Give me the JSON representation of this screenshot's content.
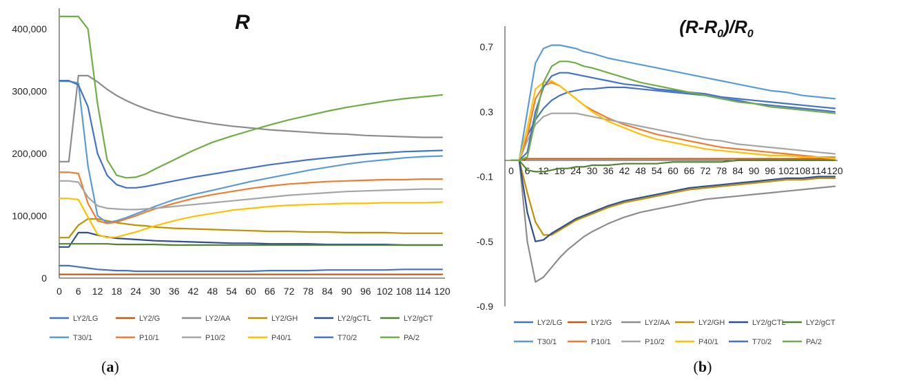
{
  "chart_data": [
    {
      "type": "line",
      "panel_label": "(a)",
      "title": "R",
      "xlabel": "",
      "ylabel": "",
      "x_ticks": [
        "0",
        "6",
        "12",
        "18",
        "24",
        "30",
        "36",
        "42",
        "48",
        "54",
        "60",
        "66",
        "72",
        "78",
        "84",
        "90",
        "96",
        "102",
        "108",
        "114",
        "120"
      ],
      "y_ticks": [
        "0",
        "100,000",
        "200,000",
        "300,000",
        "400,000"
      ],
      "xlim": [
        0,
        120
      ],
      "ylim": [
        0,
        400000
      ],
      "grid": false,
      "legend_position": "bottom",
      "x": [
        0,
        3,
        6,
        9,
        12,
        15,
        18,
        21,
        24,
        27,
        30,
        36,
        42,
        48,
        54,
        60,
        66,
        72,
        78,
        84,
        90,
        96,
        102,
        108,
        114,
        120
      ],
      "series": [
        {
          "name": "LY2/LG",
          "color": "#4472c4",
          "values": [
            20000,
            20000,
            18000,
            16000,
            14000,
            13000,
            12000,
            12000,
            11000,
            11000,
            11000,
            11000,
            11000,
            11000,
            11000,
            11000,
            12000,
            12000,
            12000,
            13000,
            13000,
            13000,
            13000,
            14000,
            14000,
            14000
          ]
        },
        {
          "name": "LY2/G",
          "color": "#c55a11",
          "values": [
            6000,
            6000,
            6000,
            6000,
            6000,
            6000,
            6000,
            6000,
            6000,
            6000,
            6000,
            6000,
            6000,
            6000,
            6000,
            6000,
            6000,
            6000,
            6000,
            6000,
            6000,
            6000,
            6000,
            6000,
            6000,
            6000
          ]
        },
        {
          "name": "LY2/AA",
          "color": "#8c8c8c",
          "values": [
            187000,
            187000,
            325000,
            325000,
            315000,
            303000,
            293000,
            285000,
            278000,
            272000,
            267000,
            259000,
            253000,
            248000,
            244000,
            241000,
            238000,
            236000,
            234000,
            232000,
            231000,
            229000,
            228000,
            227000,
            226000,
            226000
          ]
        },
        {
          "name": "LY2/GH",
          "color": "#bf9000",
          "values": [
            65000,
            65000,
            85000,
            95000,
            95000,
            92000,
            89000,
            87000,
            85000,
            84000,
            82000,
            80000,
            79000,
            78000,
            77000,
            76000,
            75000,
            75000,
            74000,
            74000,
            73000,
            73000,
            73000,
            72000,
            72000,
            72000
          ]
        },
        {
          "name": "LY2/gCTL",
          "color": "#2f4f8f",
          "values": [
            50000,
            50000,
            73000,
            73000,
            69000,
            66000,
            64000,
            63000,
            62000,
            61000,
            60000,
            59000,
            58000,
            57000,
            56000,
            56000,
            55000,
            55000,
            55000,
            54000,
            54000,
            54000,
            54000,
            53000,
            53000,
            53000
          ]
        },
        {
          "name": "LY2/gCT",
          "color": "#548235",
          "values": [
            55000,
            55000,
            55000,
            55000,
            55000,
            55000,
            54000,
            54000,
            54000,
            54000,
            54000,
            53000,
            53000,
            53000,
            53000,
            53000,
            53000,
            53000,
            53000,
            53000,
            53000,
            53000,
            53000,
            53000,
            53000,
            53000
          ]
        },
        {
          "name": "T30/1",
          "color": "#5b9bd5",
          "values": [
            316000,
            316000,
            313000,
            180000,
            100000,
            89000,
            92000,
            97000,
            103000,
            109000,
            115000,
            126000,
            134000,
            141000,
            148000,
            155000,
            161000,
            167000,
            173000,
            178000,
            183000,
            187000,
            190000,
            193000,
            195000,
            196000
          ]
        },
        {
          "name": "P10/1",
          "color": "#ed7d31",
          "values": [
            170000,
            170000,
            168000,
            120000,
            92000,
            88000,
            90000,
            95000,
            100000,
            106000,
            111000,
            120000,
            128000,
            134000,
            139000,
            144000,
            148000,
            151000,
            153000,
            155000,
            156000,
            157000,
            158000,
            158000,
            159000,
            159000
          ]
        },
        {
          "name": "P10/2",
          "color": "#a5a5a5",
          "values": [
            156000,
            156000,
            154000,
            130000,
            116000,
            112000,
            111000,
            110000,
            110000,
            111000,
            112000,
            115000,
            118000,
            121000,
            124000,
            127000,
            130000,
            133000,
            135000,
            137000,
            139000,
            140000,
            141000,
            142000,
            143000,
            143000
          ]
        },
        {
          "name": "P40/1",
          "color": "#ffc000",
          "values": [
            128000,
            128000,
            126000,
            98000,
            70000,
            65000,
            66000,
            70000,
            74000,
            79000,
            84000,
            92000,
            99000,
            104000,
            109000,
            112000,
            115000,
            117000,
            118000,
            119000,
            120000,
            120000,
            121000,
            121000,
            121000,
            122000
          ]
        },
        {
          "name": "T70/2",
          "color": "#4472c4",
          "values": [
            317000,
            317000,
            310000,
            275000,
            200000,
            165000,
            150000,
            145000,
            145000,
            147000,
            150000,
            156000,
            162000,
            167000,
            172000,
            177000,
            182000,
            186000,
            190000,
            193000,
            196000,
            199000,
            201000,
            203000,
            204000,
            205000
          ]
        },
        {
          "name": "PA/2",
          "color": "#70ad47",
          "values": [
            420000,
            420000,
            420000,
            400000,
            280000,
            190000,
            165000,
            161000,
            162000,
            167000,
            175000,
            190000,
            205000,
            218000,
            228000,
            237000,
            246000,
            254000,
            261000,
            268000,
            274000,
            279000,
            284000,
            288000,
            291000,
            294000
          ]
        }
      ]
    },
    {
      "type": "line",
      "panel_label": "(b)",
      "title": "(R-R0)/R0",
      "title_parts": {
        "a": "(R-R",
        "b": "0",
        "c": ")/R",
        "d": "0"
      },
      "xlabel": "",
      "ylabel": "",
      "x_ticks": [
        "0",
        "6",
        "12",
        "18",
        "24",
        "30",
        "36",
        "42",
        "48",
        "54",
        "60",
        "66",
        "72",
        "78",
        "84",
        "90",
        "96",
        "102",
        "108",
        "114",
        "120"
      ],
      "y_ticks": [
        "0.7",
        "0.3",
        "-0.1",
        "-0.5",
        "-0.9"
      ],
      "xlim": [
        0,
        120
      ],
      "ylim": [
        -0.9,
        0.7
      ],
      "grid": false,
      "legend_position": "bottom",
      "x": [
        0,
        3,
        6,
        9,
        12,
        15,
        18,
        21,
        24,
        27,
        30,
        36,
        42,
        48,
        54,
        60,
        66,
        72,
        78,
        84,
        90,
        96,
        102,
        108,
        114,
        120
      ],
      "series": [
        {
          "name": "LY2/LG",
          "color": "#4472c4",
          "values": [
            0,
            0,
            0.15,
            0.25,
            0.32,
            0.37,
            0.4,
            0.42,
            0.43,
            0.44,
            0.44,
            0.45,
            0.45,
            0.44,
            0.43,
            0.42,
            0.41,
            0.4,
            0.38,
            0.37,
            0.35,
            0.34,
            0.33,
            0.32,
            0.31,
            0.3
          ]
        },
        {
          "name": "LY2/G",
          "color": "#c55a11",
          "values": [
            0,
            0,
            0.01,
            0.01,
            0.01,
            0.01,
            0.01,
            0.01,
            0.01,
            0.01,
            0.01,
            0.01,
            0.01,
            0.01,
            0.01,
            0.01,
            0.01,
            0.01,
            0.01,
            0.01,
            0.01,
            0.01,
            0.01,
            0.01,
            0.01,
            0.01
          ]
        },
        {
          "name": "LY2/AA",
          "color": "#8c8c8c",
          "values": [
            0,
            0,
            -0.5,
            -0.75,
            -0.72,
            -0.66,
            -0.6,
            -0.55,
            -0.51,
            -0.47,
            -0.44,
            -0.39,
            -0.35,
            -0.32,
            -0.3,
            -0.28,
            -0.26,
            -0.24,
            -0.23,
            -0.22,
            -0.21,
            -0.2,
            -0.19,
            -0.18,
            -0.17,
            -0.16
          ]
        },
        {
          "name": "LY2/GH",
          "color": "#bf9000",
          "values": [
            0,
            0,
            -0.2,
            -0.38,
            -0.46,
            -0.46,
            -0.43,
            -0.4,
            -0.37,
            -0.35,
            -0.33,
            -0.29,
            -0.26,
            -0.24,
            -0.22,
            -0.2,
            -0.18,
            -0.17,
            -0.16,
            -0.15,
            -0.14,
            -0.13,
            -0.12,
            -0.12,
            -0.11,
            -0.11
          ]
        },
        {
          "name": "LY2/gCTL",
          "color": "#2f4f8f",
          "values": [
            0,
            0,
            -0.32,
            -0.5,
            -0.49,
            -0.45,
            -0.42,
            -0.39,
            -0.36,
            -0.34,
            -0.32,
            -0.28,
            -0.25,
            -0.23,
            -0.21,
            -0.19,
            -0.17,
            -0.16,
            -0.15,
            -0.14,
            -0.13,
            -0.12,
            -0.11,
            -0.11,
            -0.1,
            -0.1
          ]
        },
        {
          "name": "LY2/gCT",
          "color": "#548235",
          "values": [
            0,
            0,
            -0.06,
            -0.07,
            -0.07,
            -0.06,
            -0.05,
            -0.05,
            -0.04,
            -0.04,
            -0.03,
            -0.03,
            -0.02,
            -0.02,
            -0.02,
            -0.01,
            -0.01,
            -0.01,
            -0.01,
            0,
            0,
            0,
            0,
            0,
            0,
            0
          ]
        },
        {
          "name": "T30/1",
          "color": "#5b9bd5",
          "values": [
            0,
            0,
            0.3,
            0.6,
            0.69,
            0.71,
            0.71,
            0.7,
            0.69,
            0.67,
            0.66,
            0.63,
            0.61,
            0.59,
            0.57,
            0.55,
            0.53,
            0.51,
            0.49,
            0.47,
            0.45,
            0.43,
            0.42,
            0.4,
            0.39,
            0.38
          ]
        },
        {
          "name": "P10/1",
          "color": "#ed7d31",
          "values": [
            0,
            0,
            0.15,
            0.38,
            0.46,
            0.48,
            0.46,
            0.42,
            0.38,
            0.34,
            0.31,
            0.26,
            0.22,
            0.19,
            0.16,
            0.14,
            0.12,
            0.1,
            0.08,
            0.07,
            0.06,
            0.05,
            0.04,
            0.03,
            0.02,
            0.02
          ]
        },
        {
          "name": "P10/2",
          "color": "#a5a5a5",
          "values": [
            0,
            0,
            0.12,
            0.22,
            0.27,
            0.29,
            0.29,
            0.29,
            0.29,
            0.28,
            0.27,
            0.25,
            0.23,
            0.21,
            0.19,
            0.17,
            0.15,
            0.13,
            0.12,
            0.1,
            0.09,
            0.08,
            0.07,
            0.06,
            0.05,
            0.04
          ]
        },
        {
          "name": "P40/1",
          "color": "#ffc000",
          "values": [
            0,
            0,
            0.2,
            0.44,
            0.48,
            0.49,
            0.46,
            0.42,
            0.38,
            0.34,
            0.3,
            0.24,
            0.2,
            0.16,
            0.13,
            0.11,
            0.09,
            0.07,
            0.06,
            0.05,
            0.04,
            0.03,
            0.03,
            0.02,
            0.02,
            0.01
          ]
        },
        {
          "name": "T70/2",
          "color": "#4472c4",
          "values": [
            0,
            0,
            0.05,
            0.3,
            0.45,
            0.52,
            0.54,
            0.54,
            0.53,
            0.52,
            0.51,
            0.49,
            0.47,
            0.46,
            0.44,
            0.43,
            0.42,
            0.41,
            0.39,
            0.38,
            0.37,
            0.36,
            0.35,
            0.34,
            0.33,
            0.32
          ]
        },
        {
          "name": "PA/2",
          "color": "#70ad47",
          "values": [
            0,
            0,
            0.02,
            0.25,
            0.48,
            0.58,
            0.61,
            0.61,
            0.6,
            0.58,
            0.57,
            0.54,
            0.51,
            0.48,
            0.46,
            0.44,
            0.42,
            0.4,
            0.38,
            0.36,
            0.35,
            0.33,
            0.32,
            0.31,
            0.3,
            0.29
          ]
        }
      ]
    }
  ]
}
